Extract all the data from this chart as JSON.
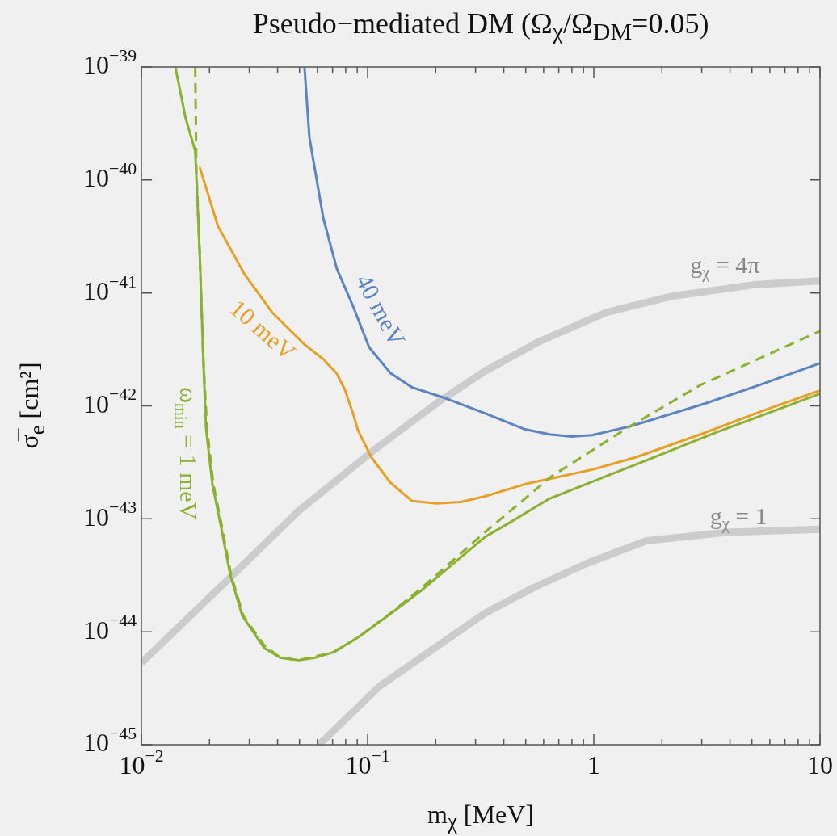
{
  "chart_data": {
    "type": "line",
    "title": "Pseudo−mediated DM (Ω$_{χ}$/Ω$_{DM}$=0.05)",
    "xlabel": "m$_{χ}$ [MeV]",
    "ylabel": "σ̅$_{e}$ [cm²]",
    "log": "xy",
    "marker": "none",
    "xlim": [
      0.01,
      10
    ],
    "ylim": [
      1e-45,
      1e-39
    ],
    "xticks": [
      {
        "value": 0.01,
        "label": "10$^{−2}$"
      },
      {
        "value": 0.02,
        "label": null
      },
      {
        "value": 0.03,
        "label": null
      },
      {
        "value": 0.04,
        "label": null
      },
      {
        "value": 0.05,
        "label": null
      },
      {
        "value": 0.06,
        "label": null
      },
      {
        "value": 0.07,
        "label": null
      },
      {
        "value": 0.08,
        "label": null
      },
      {
        "value": 0.09,
        "label": null
      },
      {
        "value": 0.1,
        "label": "10$^{−1}$"
      },
      {
        "value": 0.2,
        "label": null
      },
      {
        "value": 0.3,
        "label": null
      },
      {
        "value": 0.4,
        "label": null
      },
      {
        "value": 0.5,
        "label": null
      },
      {
        "value": 0.6,
        "label": null
      },
      {
        "value": 0.7,
        "label": null
      },
      {
        "value": 0.8,
        "label": null
      },
      {
        "value": 0.9,
        "label": null
      },
      1,
      {
        "value": 2,
        "label": null
      },
      {
        "value": 3,
        "label": null
      },
      {
        "value": 4,
        "label": null
      },
      {
        "value": 5,
        "label": null
      },
      {
        "value": 6,
        "label": null
      },
      {
        "value": 7,
        "label": null
      },
      {
        "value": 8,
        "label": null
      },
      {
        "value": 9,
        "label": null
      },
      10
    ],
    "yticks": [
      {
        "value": 1e-45,
        "label": "10$^{−45}$"
      },
      {
        "value": 1e-44,
        "label": "10$^{−44}$"
      },
      {
        "value": 1e-43,
        "label": "10$^{−43}$"
      },
      {
        "value": 1e-42,
        "label": "10$^{−42}$"
      },
      {
        "value": 1e-41,
        "label": "10$^{−41}$"
      },
      {
        "value": 1e-40,
        "label": "10$^{−40}$"
      },
      {
        "value": 1e-39,
        "label": "10$^{−39}$"
      }
    ],
    "series": [
      {
        "name": "ω$_{min}$ = 1 meV",
        "color": "#8cb030",
        "line_style": "solid",
        "x": [
          0.01413,
          0.0157,
          0.0173,
          0.0181,
          0.0188,
          0.0193,
          0.0206,
          0.0224,
          0.0247,
          0.0279,
          0.0349,
          0.0411,
          0.0497,
          0.0586,
          0.0708,
          0.0906,
          0.123,
          0.171,
          0.33,
          0.411,
          0.637,
          0.984,
          1.71,
          3.38,
          10
        ],
        "values": [
          1e-39,
          3.5e-40,
          1.81e-40,
          2.28e-41,
          2.5e-42,
          6.4e-43,
          2.03e-43,
          8.9e-44,
          3.2e-44,
          1.39e-44,
          7.2e-45,
          5.9e-45,
          5.6e-45,
          5.9e-45,
          6.6e-45,
          8.9e-45,
          1.39e-44,
          2.28e-44,
          6.9e-44,
          8.9e-44,
          1.51e-43,
          2.13e-43,
          3.3e-43,
          5.7e-43,
          1.28e-42
        ]
      },
      {
        "color": "#8cb030",
        "line_style": "dashed",
        "x": [
          0.0173,
          0.0175,
          0.0181,
          0.0188,
          0.0195,
          0.0208,
          0.0226,
          0.0249,
          0.0282,
          0.0349,
          0.0411,
          0.0497,
          0.0708,
          0.0906,
          0.123,
          0.171,
          0.33,
          0.652,
          1.41,
          2.96,
          5.1,
          10
        ],
        "values": [
          1e-39,
          1.18e-40,
          2.28e-41,
          2.5e-42,
          6.4e-43,
          2.03e-43,
          8.9e-44,
          3.2e-44,
          1.39e-44,
          7.6e-45,
          5.9e-45,
          5.6e-45,
          6.6e-45,
          8.9e-45,
          1.4e-44,
          2.39e-44,
          7.6e-44,
          2.39e-43,
          6.4e-43,
          1.53e-42,
          2.5e-42,
          4.6e-42
        ]
      },
      {
        "name": "10 meV",
        "color": "#e6a024",
        "line_style": "solid",
        "x": [
          0.0181,
          0.0218,
          0.0286,
          0.0379,
          0.0526,
          0.0636,
          0.0731,
          0.0794,
          0.0863,
          0.0906,
          0.104,
          0.126,
          0.157,
          0.201,
          0.258,
          0.33,
          0.497,
          0.652,
          0.984,
          1.53,
          2.96,
          5.71,
          10
        ],
        "values": [
          1.3e-40,
          3.9e-41,
          1.46e-41,
          6.7e-42,
          3.5e-42,
          2.6e-42,
          1.93e-42,
          1.39e-42,
          8.5e-43,
          6.1e-43,
          3.5e-43,
          2.1e-43,
          1.44e-43,
          1.37e-43,
          1.41e-43,
          1.58e-43,
          2.03e-43,
          2.28e-43,
          2.73e-43,
          3.5e-43,
          5.6e-43,
          9.2e-43,
          1.37e-42
        ]
      },
      {
        "name": "40 meV",
        "color": "#5b84c0",
        "line_style": "solid",
        "x": [
          0.0526,
          0.0553,
          0.0637,
          0.0731,
          0.0863,
          0.1016,
          0.126,
          0.157,
          0.218,
          0.33,
          0.497,
          0.637,
          0.794,
          0.984,
          1.45,
          3.11,
          5.4,
          10
        ],
        "values": [
          1e-39,
          2.39e-40,
          4.6e-41,
          1.64e-41,
          7.6e-42,
          3.3e-42,
          1.96e-42,
          1.46e-42,
          1.18e-42,
          8.6e-43,
          6.2e-43,
          5.6e-43,
          5.35e-43,
          5.5e-43,
          6.6e-43,
          1.05e-42,
          1.53e-42,
          2.39e-42
        ]
      },
      {
        "name": "g$_{χ}$ = 4π",
        "color": "#cccccc",
        "line_style": "solid",
        "x": [
          0.01,
          0.0237,
          0.0497,
          0.104,
          0.201,
          0.33,
          0.571,
          1.13,
          2.24,
          5.1,
          10
        ],
        "values": [
          5.3e-45,
          2.8e-44,
          1.18e-43,
          3.9e-43,
          1.05e-42,
          2.03e-42,
          3.7e-42,
          6.7e-42,
          9.4e-42,
          1.18e-41,
          1.28e-41
        ]
      },
      {
        "name": "g$_{χ}$ = 1",
        "color": "#cccccc",
        "line_style": "solid",
        "x": [
          0.0611,
          0.113,
          0.33,
          0.535,
          0.936,
          1.71,
          3.88,
          10
        ],
        "values": [
          1e-45,
          3.3e-45,
          1.46e-44,
          2.43e-44,
          4.05e-44,
          6.4e-44,
          7.6e-44,
          8.1e-44
        ]
      }
    ]
  }
}
